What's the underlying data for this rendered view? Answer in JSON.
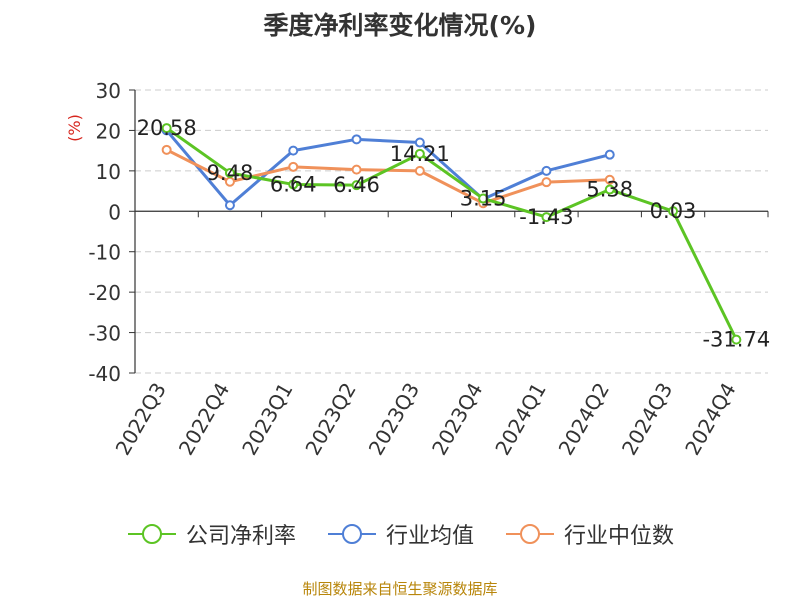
{
  "chart_data": {
    "type": "line",
    "title": "季度净利率变化情况(%)",
    "ylabel": "(%)",
    "categories": [
      "2022Q3",
      "2022Q4",
      "2023Q1",
      "2023Q2",
      "2023Q3",
      "2023Q4",
      "2024Q1",
      "2024Q2",
      "2024Q3",
      "2024Q4"
    ],
    "ylim": [
      -40,
      30
    ],
    "yticks": [
      "30",
      "20",
      "10",
      "0",
      "-10",
      "-20",
      "-30",
      "-40"
    ],
    "grid": true,
    "legend_position": "bottom",
    "series": [
      {
        "name": "公司净利率",
        "color": "#5cc424",
        "values": [
          20.58,
          9.48,
          6.64,
          6.46,
          14.21,
          3.15,
          -1.43,
          5.38,
          0.03,
          -31.74
        ],
        "labels": [
          "20.58",
          "9.48",
          "6.64",
          "6.46",
          "14.21",
          "3.15",
          "-1.43",
          "5.38",
          "0.03",
          "-31.74"
        ]
      },
      {
        "name": "行业均值",
        "color": "#4f7fd6",
        "values": [
          20.0,
          1.5,
          15.0,
          17.8,
          17.0,
          3.0,
          10.0,
          14.0,
          null,
          null
        ]
      },
      {
        "name": "行业中位数",
        "color": "#f0915a",
        "values": [
          15.2,
          7.3,
          11.0,
          10.3,
          10.0,
          2.0,
          7.2,
          7.8,
          null,
          null
        ]
      }
    ]
  },
  "footer": {
    "source": "制图数据来自恒生聚源数据库"
  }
}
